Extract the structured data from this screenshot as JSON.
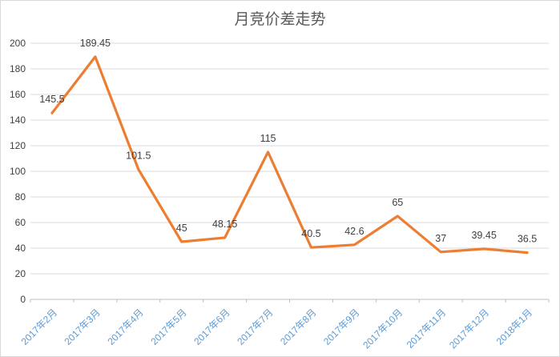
{
  "chart_data": {
    "type": "line",
    "title": "月竞价差走势",
    "categories": [
      "2017年2月",
      "2017年3月",
      "2017年4月",
      "2017年5月",
      "2017年6月",
      "2017年7月",
      "2017年8月",
      "2017年9月",
      "2017年10月",
      "2017年11月",
      "2017年12月",
      "2018年1月"
    ],
    "series": [
      {
        "name": "月竞价差",
        "values": [
          145.5,
          189.45,
          101.5,
          45,
          48.15,
          115,
          40.5,
          42.6,
          65,
          37,
          39.45,
          36.5
        ]
      }
    ],
    "data_labels_shown": true,
    "xlabel": "",
    "ylabel": "",
    "ylim": [
      0,
      200
    ],
    "ytick_step": 20,
    "yticks": [
      0,
      20,
      40,
      60,
      80,
      100,
      120,
      140,
      160,
      180,
      200
    ],
    "grid": true,
    "legend": false,
    "x_label_rotation_deg": -45,
    "colors": {
      "line": "#ED7D31",
      "grid": "#D9D9D9",
      "axis": "#BFBFBF",
      "category_label": "#5B9BD5",
      "value_label": "#404040",
      "title": "#595959",
      "background": "#FFFFFF",
      "border": "#D9D9D9"
    }
  }
}
